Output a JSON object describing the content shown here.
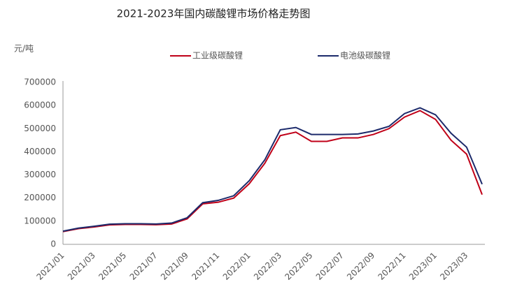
{
  "chart_data": {
    "type": "line",
    "title": "2021-2023年国内碳酸锂市场价格走势图",
    "y_label": "元/吨",
    "categories": [
      "2021/01",
      null,
      "2021/03",
      null,
      "2021/05",
      null,
      "2021/07",
      null,
      "2021/09",
      null,
      "2021/11",
      null,
      "2022/01",
      null,
      "2022/03",
      null,
      "2022/05",
      null,
      "2022/07",
      null,
      "2022/09",
      null,
      "2022/11",
      null,
      "2023/01",
      null,
      "2023/03",
      null
    ],
    "series": [
      {
        "name": "工业级碳酸锂",
        "color": "#c00018",
        "values": [
          55000,
          68000,
          75000,
          84000,
          86000,
          86000,
          85000,
          88000,
          110000,
          175000,
          182000,
          200000,
          262000,
          350000,
          470000,
          485000,
          445000,
          445000,
          460000,
          460000,
          475000,
          500000,
          550000,
          578000,
          540000,
          450000,
          390000,
          215000
        ]
      },
      {
        "name": "电池级碳酸锂",
        "color": "#1c2a6b",
        "values": [
          57000,
          70000,
          78000,
          87000,
          89000,
          89000,
          88000,
          92000,
          115000,
          180000,
          190000,
          210000,
          275000,
          365000,
          495000,
          505000,
          475000,
          475000,
          475000,
          477000,
          490000,
          510000,
          565000,
          590000,
          560000,
          480000,
          420000,
          260000
        ]
      }
    ],
    "ylim": [
      0,
      700000
    ],
    "yticks": [
      0,
      100000,
      200000,
      300000,
      400000,
      500000,
      600000,
      700000
    ],
    "grid": false
  }
}
